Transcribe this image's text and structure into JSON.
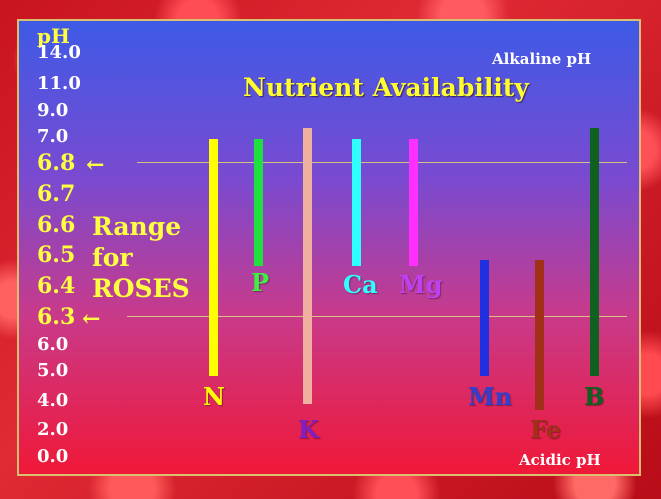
{
  "title": "Nutrient Availability",
  "corner_top": "Alkaline pH",
  "corner_bottom": "Acidic pH",
  "ph_label": "pH",
  "scale": {
    "v140": "14.0",
    "v110": "11.0",
    "v90": "9.0",
    "v70": "7.0",
    "v68": "6.8",
    "v67": "6.7",
    "v66": "6.6",
    "v65": "6.5",
    "v64": "6.4",
    "v63": "6.3",
    "v60": "6.0",
    "v50": "5.0",
    "v40": "4.0",
    "v20": "2.0",
    "v00": "0.0"
  },
  "arrow": "←",
  "range_text": {
    "line1": "Range",
    "line2": "for",
    "line3": "ROSES"
  },
  "colors": {
    "N": "#ffff00",
    "P": "#20e040",
    "K": "#f0b0a0",
    "Ca": "#30ffff",
    "Mg": "#ff30ff",
    "Mn": "#2030e0",
    "Fe": "#a03018",
    "B": "#106020"
  },
  "nutrients": {
    "N": "N",
    "P": "P",
    "K": "K",
    "Ca": "Ca",
    "Mg": "Mg",
    "Mn": "Mn",
    "Fe": "Fe",
    "B": "B"
  }
}
